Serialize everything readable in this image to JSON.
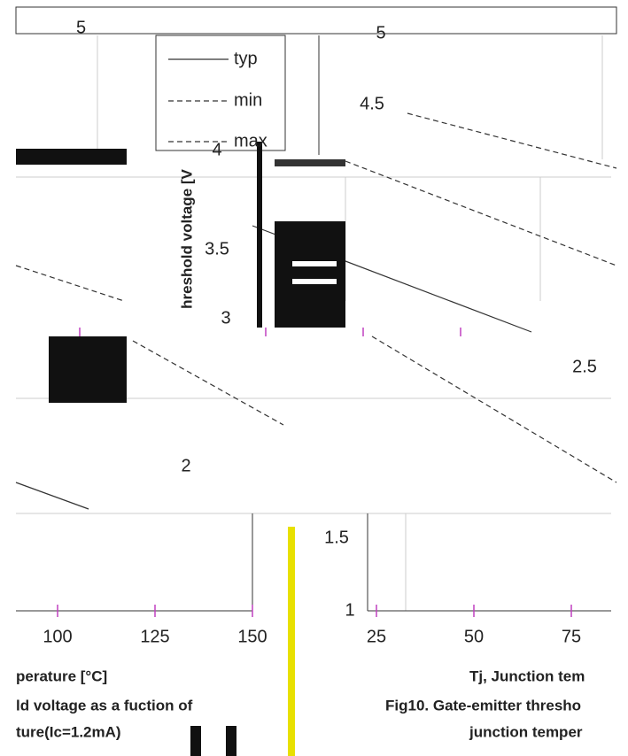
{
  "legend": [
    "typ",
    "min",
    "max"
  ],
  "left_panel": {
    "y_ticks": [
      "5"
    ],
    "x_ticks": [
      "100",
      "125",
      "150"
    ],
    "x_label": "perature [°C]",
    "caption": [
      "ld voltage as a fuction of",
      "ture(Ic=1.2mA)"
    ]
  },
  "right_panel": {
    "y_label": "hreshold voltage [V",
    "y_ticks": [
      "5",
      "4.5",
      "4",
      "3.5",
      "3",
      "2.5",
      "2",
      "1.5",
      "1"
    ],
    "x_ticks": [
      "25",
      "50",
      "75"
    ],
    "x_label": "Tj, Junction tem",
    "caption": [
      "Fig10. Gate-emitter thresho",
      "junction temper"
    ]
  }
}
